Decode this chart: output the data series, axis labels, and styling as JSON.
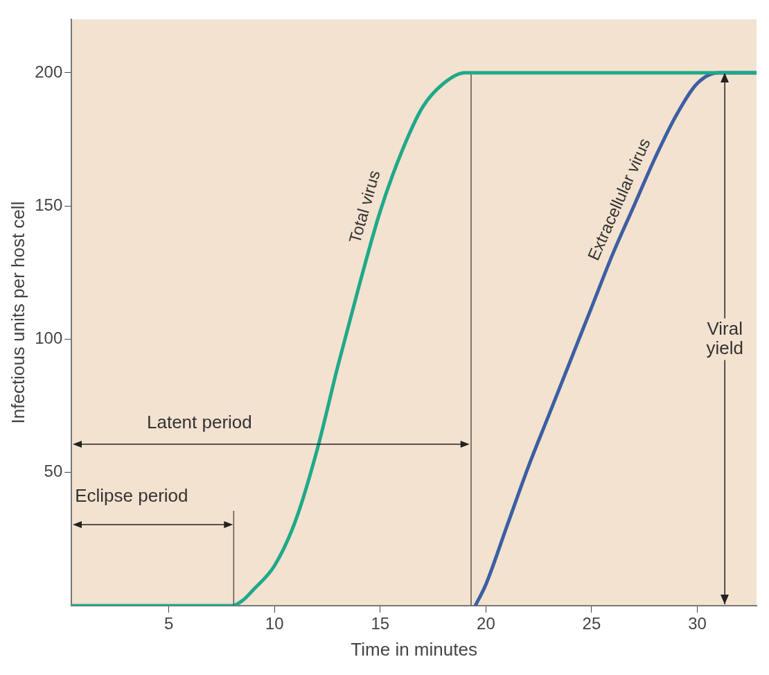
{
  "chart_data": {
    "type": "line",
    "xlabel": "Time in minutes",
    "ylabel": "Infectious units per host cell",
    "xlim": [
      0.4,
      32.8
    ],
    "xticks": [
      5,
      10,
      15,
      20,
      25,
      30
    ],
    "ylim": [
      0,
      220
    ],
    "yticks": [
      50,
      100,
      150,
      200
    ],
    "grid": false,
    "legend": false,
    "marker": "none",
    "line_style": "solid",
    "series": [
      {
        "name": "Total virus",
        "color": "#1fa98a",
        "x": [
          0.4,
          8,
          8.5,
          9,
          10,
          11,
          12,
          13,
          14,
          15,
          16,
          17,
          18,
          19,
          32.8
        ],
        "values": [
          0,
          0,
          2,
          6,
          15,
          32,
          58,
          90,
          120,
          148,
          170,
          187,
          196,
          200,
          200
        ]
      },
      {
        "name": "Extracellular virus",
        "color": "#3b5fa3",
        "x": [
          19.5,
          20,
          21,
          22,
          23,
          24,
          25,
          26,
          27,
          28,
          29,
          30,
          31,
          32.8
        ],
        "values": [
          0,
          8,
          30,
          52,
          72,
          92,
          112,
          132,
          150,
          168,
          184,
          196,
          200,
          200
        ]
      }
    ],
    "ref_lines": [
      {
        "axis": "x",
        "value": 19.3
      },
      {
        "axis": "x",
        "value": 31.3,
        "label": "Viral yield"
      }
    ],
    "annotations": [
      "Latent period",
      "Eclipse period"
    ]
  }
}
